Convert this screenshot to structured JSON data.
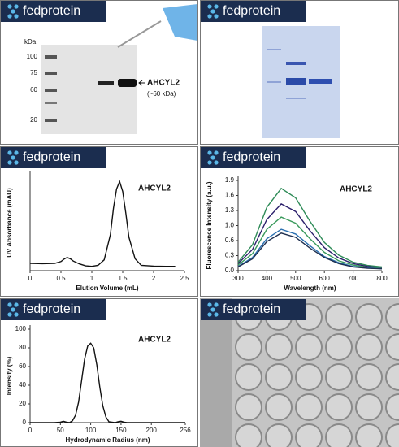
{
  "brand": "fedprotein",
  "gel": {
    "unit": "kDa",
    "markers": [
      100,
      75,
      60,
      20
    ],
    "label": "AHCYL2",
    "size": "(~60 kDa)"
  },
  "chart_data": [
    {
      "type": "line",
      "title": "AHCYL2",
      "x_label": "Elution Volume (mL)",
      "y_label": "UV Absorbance (mAU)",
      "x": [
        0,
        0.2,
        0.4,
        0.5,
        0.55,
        0.6,
        0.65,
        0.7,
        0.8,
        0.9,
        1.0,
        1.1,
        1.2,
        1.3,
        1.35,
        1.4,
        1.45,
        1.5,
        1.55,
        1.6,
        1.7,
        1.8,
        2.0,
        2.2,
        2.35
      ],
      "series": [
        {
          "color": "#111111",
          "values": [
            30,
            29,
            30,
            38,
            48,
            55,
            50,
            40,
            28,
            20,
            18,
            22,
            45,
            150,
            260,
            340,
            372,
            330,
            240,
            140,
            50,
            22,
            19,
            18,
            18
          ]
        }
      ],
      "xlim": [
        0,
        2.5
      ],
      "ylim": [
        0,
        400
      ],
      "xticks": [
        0,
        0.5,
        1,
        1.5,
        2,
        2.5
      ]
    },
    {
      "type": "line",
      "title": "AHCYL2",
      "x_label": "Wavelength (nm)",
      "y_label": "Fluorescence Intensity (a.u.)",
      "x": [
        300,
        350,
        400,
        450,
        500,
        550,
        600,
        650,
        700,
        750,
        800
      ],
      "series": [
        {
          "color": "#2e8b57",
          "values": [
            0.18,
            0.55,
            1.35,
            1.75,
            1.55,
            1.05,
            0.6,
            0.33,
            0.18,
            0.11,
            0.08
          ]
        },
        {
          "color": "#2b1f6b",
          "values": [
            0.15,
            0.45,
            1.09,
            1.42,
            1.26,
            0.85,
            0.49,
            0.27,
            0.15,
            0.09,
            0.06
          ]
        },
        {
          "color": "#3a9a5c",
          "values": [
            0.12,
            0.36,
            0.88,
            1.14,
            1.01,
            0.68,
            0.39,
            0.21,
            0.12,
            0.07,
            0.05
          ]
        },
        {
          "color": "#2a6fb0",
          "values": [
            0.09,
            0.28,
            0.68,
            0.88,
            0.78,
            0.53,
            0.3,
            0.17,
            0.09,
            0.06,
            0.04
          ]
        },
        {
          "color": "#1f2f4f",
          "values": [
            0.08,
            0.25,
            0.62,
            0.8,
            0.71,
            0.48,
            0.28,
            0.15,
            0.08,
            0.05,
            0.04
          ]
        }
      ],
      "xlim": [
        300,
        800
      ],
      "ylim": [
        0,
        1.92
      ],
      "xticks": [
        300,
        400,
        500,
        600,
        700,
        800
      ],
      "yticks": [
        {
          "value": 0,
          "label": "0.0"
        },
        {
          "value": 0.32,
          "label": "0.3"
        },
        {
          "value": 0.64,
          "label": "0.6"
        },
        {
          "value": 0.96,
          "label": "1.0"
        },
        {
          "value": 1.28,
          "label": "1.3"
        },
        {
          "value": 1.6,
          "label": "1.6"
        },
        {
          "value": 1.92,
          "label": "1.9"
        }
      ]
    },
    {
      "type": "line",
      "title": "AHCYL2",
      "x_label": "Hydrodynamic Radius (nm)",
      "y_label": "Intensity (%)",
      "x": [
        0,
        40,
        50,
        55,
        60,
        65,
        70,
        75,
        80,
        85,
        90,
        95,
        100,
        105,
        110,
        115,
        120,
        125,
        130,
        140,
        145,
        150,
        155,
        160,
        200,
        256
      ],
      "series": [
        {
          "color": "#111111",
          "values": [
            0,
            0,
            0.5,
            1.5,
            0.5,
            0,
            2,
            8,
            22,
            45,
            68,
            82,
            85,
            80,
            62,
            38,
            18,
            6,
            1,
            0,
            1,
            1.5,
            0.5,
            0,
            0,
            0
          ]
        }
      ],
      "xlim": [
        0,
        256
      ],
      "ylim": [
        0,
        100
      ],
      "xticks": [
        0,
        50,
        100,
        150,
        200,
        256
      ],
      "yticks": [
        0,
        20,
        40,
        60,
        80,
        100
      ]
    }
  ]
}
